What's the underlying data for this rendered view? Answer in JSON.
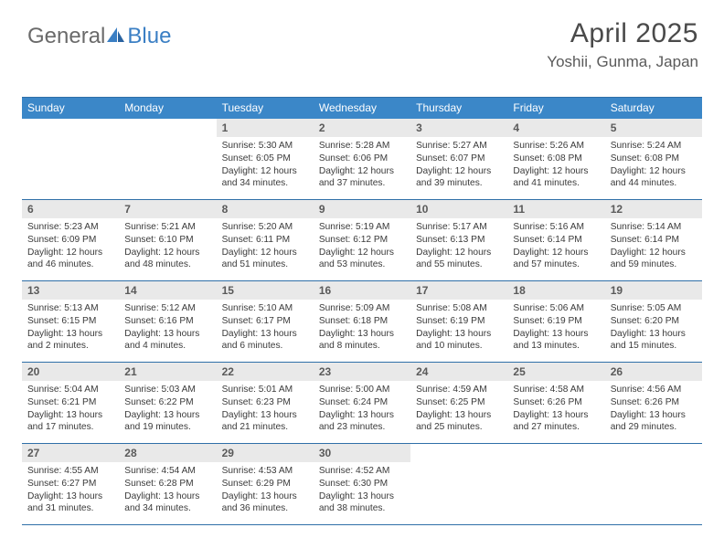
{
  "logo": {
    "general": "General",
    "blue": "Blue"
  },
  "header": {
    "month_title": "April 2025",
    "location": "Yoshii, Gunma, Japan"
  },
  "day_headers": [
    "Sunday",
    "Monday",
    "Tuesday",
    "Wednesday",
    "Thursday",
    "Friday",
    "Saturday"
  ],
  "colors": {
    "header_bg": "#3b87c8",
    "header_text": "#ffffff",
    "row_border": "#2f6fa8",
    "daynum_bg": "#e9e9e9",
    "daynum_text": "#5a5a5a",
    "body_text": "#3a3a3a",
    "logo_blue": "#3b7fc4",
    "logo_gray": "#6a6a6a"
  },
  "weeks": [
    [
      null,
      null,
      {
        "num": "1",
        "sunrise": "Sunrise: 5:30 AM",
        "sunset": "Sunset: 6:05 PM",
        "daylight": "Daylight: 12 hours and 34 minutes."
      },
      {
        "num": "2",
        "sunrise": "Sunrise: 5:28 AM",
        "sunset": "Sunset: 6:06 PM",
        "daylight": "Daylight: 12 hours and 37 minutes."
      },
      {
        "num": "3",
        "sunrise": "Sunrise: 5:27 AM",
        "sunset": "Sunset: 6:07 PM",
        "daylight": "Daylight: 12 hours and 39 minutes."
      },
      {
        "num": "4",
        "sunrise": "Sunrise: 5:26 AM",
        "sunset": "Sunset: 6:08 PM",
        "daylight": "Daylight: 12 hours and 41 minutes."
      },
      {
        "num": "5",
        "sunrise": "Sunrise: 5:24 AM",
        "sunset": "Sunset: 6:08 PM",
        "daylight": "Daylight: 12 hours and 44 minutes."
      }
    ],
    [
      {
        "num": "6",
        "sunrise": "Sunrise: 5:23 AM",
        "sunset": "Sunset: 6:09 PM",
        "daylight": "Daylight: 12 hours and 46 minutes."
      },
      {
        "num": "7",
        "sunrise": "Sunrise: 5:21 AM",
        "sunset": "Sunset: 6:10 PM",
        "daylight": "Daylight: 12 hours and 48 minutes."
      },
      {
        "num": "8",
        "sunrise": "Sunrise: 5:20 AM",
        "sunset": "Sunset: 6:11 PM",
        "daylight": "Daylight: 12 hours and 51 minutes."
      },
      {
        "num": "9",
        "sunrise": "Sunrise: 5:19 AM",
        "sunset": "Sunset: 6:12 PM",
        "daylight": "Daylight: 12 hours and 53 minutes."
      },
      {
        "num": "10",
        "sunrise": "Sunrise: 5:17 AM",
        "sunset": "Sunset: 6:13 PM",
        "daylight": "Daylight: 12 hours and 55 minutes."
      },
      {
        "num": "11",
        "sunrise": "Sunrise: 5:16 AM",
        "sunset": "Sunset: 6:14 PM",
        "daylight": "Daylight: 12 hours and 57 minutes."
      },
      {
        "num": "12",
        "sunrise": "Sunrise: 5:14 AM",
        "sunset": "Sunset: 6:14 PM",
        "daylight": "Daylight: 12 hours and 59 minutes."
      }
    ],
    [
      {
        "num": "13",
        "sunrise": "Sunrise: 5:13 AM",
        "sunset": "Sunset: 6:15 PM",
        "daylight": "Daylight: 13 hours and 2 minutes."
      },
      {
        "num": "14",
        "sunrise": "Sunrise: 5:12 AM",
        "sunset": "Sunset: 6:16 PM",
        "daylight": "Daylight: 13 hours and 4 minutes."
      },
      {
        "num": "15",
        "sunrise": "Sunrise: 5:10 AM",
        "sunset": "Sunset: 6:17 PM",
        "daylight": "Daylight: 13 hours and 6 minutes."
      },
      {
        "num": "16",
        "sunrise": "Sunrise: 5:09 AM",
        "sunset": "Sunset: 6:18 PM",
        "daylight": "Daylight: 13 hours and 8 minutes."
      },
      {
        "num": "17",
        "sunrise": "Sunrise: 5:08 AM",
        "sunset": "Sunset: 6:19 PM",
        "daylight": "Daylight: 13 hours and 10 minutes."
      },
      {
        "num": "18",
        "sunrise": "Sunrise: 5:06 AM",
        "sunset": "Sunset: 6:19 PM",
        "daylight": "Daylight: 13 hours and 13 minutes."
      },
      {
        "num": "19",
        "sunrise": "Sunrise: 5:05 AM",
        "sunset": "Sunset: 6:20 PM",
        "daylight": "Daylight: 13 hours and 15 minutes."
      }
    ],
    [
      {
        "num": "20",
        "sunrise": "Sunrise: 5:04 AM",
        "sunset": "Sunset: 6:21 PM",
        "daylight": "Daylight: 13 hours and 17 minutes."
      },
      {
        "num": "21",
        "sunrise": "Sunrise: 5:03 AM",
        "sunset": "Sunset: 6:22 PM",
        "daylight": "Daylight: 13 hours and 19 minutes."
      },
      {
        "num": "22",
        "sunrise": "Sunrise: 5:01 AM",
        "sunset": "Sunset: 6:23 PM",
        "daylight": "Daylight: 13 hours and 21 minutes."
      },
      {
        "num": "23",
        "sunrise": "Sunrise: 5:00 AM",
        "sunset": "Sunset: 6:24 PM",
        "daylight": "Daylight: 13 hours and 23 minutes."
      },
      {
        "num": "24",
        "sunrise": "Sunrise: 4:59 AM",
        "sunset": "Sunset: 6:25 PM",
        "daylight": "Daylight: 13 hours and 25 minutes."
      },
      {
        "num": "25",
        "sunrise": "Sunrise: 4:58 AM",
        "sunset": "Sunset: 6:26 PM",
        "daylight": "Daylight: 13 hours and 27 minutes."
      },
      {
        "num": "26",
        "sunrise": "Sunrise: 4:56 AM",
        "sunset": "Sunset: 6:26 PM",
        "daylight": "Daylight: 13 hours and 29 minutes."
      }
    ],
    [
      {
        "num": "27",
        "sunrise": "Sunrise: 4:55 AM",
        "sunset": "Sunset: 6:27 PM",
        "daylight": "Daylight: 13 hours and 31 minutes."
      },
      {
        "num": "28",
        "sunrise": "Sunrise: 4:54 AM",
        "sunset": "Sunset: 6:28 PM",
        "daylight": "Daylight: 13 hours and 34 minutes."
      },
      {
        "num": "29",
        "sunrise": "Sunrise: 4:53 AM",
        "sunset": "Sunset: 6:29 PM",
        "daylight": "Daylight: 13 hours and 36 minutes."
      },
      {
        "num": "30",
        "sunrise": "Sunrise: 4:52 AM",
        "sunset": "Sunset: 6:30 PM",
        "daylight": "Daylight: 13 hours and 38 minutes."
      },
      null,
      null,
      null
    ]
  ]
}
